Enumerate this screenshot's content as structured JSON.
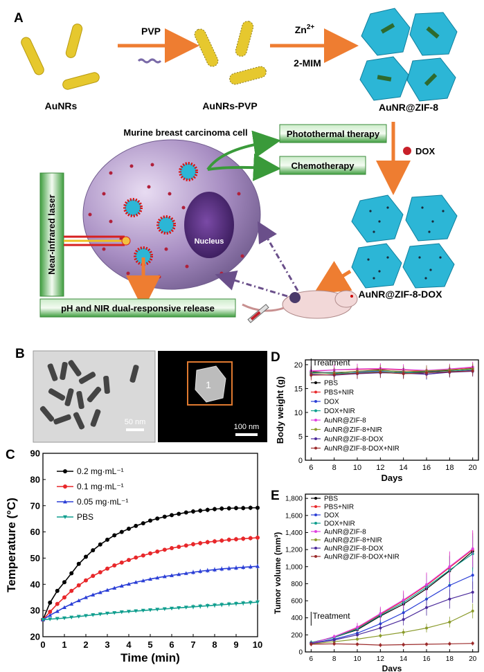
{
  "panel_labels": {
    "a": "A",
    "b": "B",
    "c": "C",
    "d": "D",
    "e": "E"
  },
  "panelA": {
    "reagent1": "PVP",
    "reagent2_main": "Zn",
    "reagent2_sup": "2+",
    "reagent3": "2-MIM",
    "label_aunrs": "AuNRs",
    "label_aunrs_pvp": "AuNRs-PVP",
    "label_zif": "AuNR@ZIF-8",
    "cell_title": "Murine breast carcinoma cell",
    "nucleus": "Nucleus",
    "photothermal": "Photothermal therapy",
    "chemotherapy": "Chemotherapy",
    "dox": "DOX",
    "laser": "Near-infrared laser",
    "release": "pH and NIR dual-responsive release",
    "zif_dox": "AuNR@ZIF-8-DOX"
  },
  "panelB": {
    "scale1": "50 nm",
    "scale2": "100 nm",
    "inset_number": "1"
  },
  "colors": {
    "arrow_orange": "#ee7d31",
    "green_box": "#2e8b2e",
    "rod_yellow": "#e6c82e",
    "crystal_blue": "#2cb6d6",
    "cell_purple": "#9a7fb4"
  },
  "chart_data": [
    {
      "type": "line",
      "panel": "C",
      "xlabel": "Time (min)",
      "ylabel": "Temperature (°C)",
      "xlim": [
        0,
        10
      ],
      "ylim": [
        20,
        90
      ],
      "xticks": [
        0,
        1,
        2,
        3,
        4,
        5,
        6,
        7,
        8,
        9,
        10
      ],
      "yticks": [
        20,
        30,
        40,
        50,
        60,
        70,
        80,
        90
      ],
      "x": [
        0,
        0.33,
        0.67,
        1,
        1.33,
        1.67,
        2,
        2.33,
        2.67,
        3,
        3.33,
        3.67,
        4,
        4.33,
        4.67,
        5,
        5.33,
        5.67,
        6,
        6.33,
        6.67,
        7,
        7.33,
        7.67,
        8,
        8.33,
        8.67,
        9,
        9.33,
        9.67,
        10
      ],
      "legend_position": "top-left",
      "series": [
        {
          "name": "0.2 mg·mL⁻¹",
          "color": "#000000",
          "marker": "circle",
          "values": [
            26.5,
            33,
            37.5,
            40.8,
            44.2,
            47.8,
            50.5,
            53,
            55.2,
            57,
            58.7,
            60,
            61.2,
            62.3,
            63.3,
            64.3,
            65.1,
            65.8,
            66.4,
            66.9,
            67.4,
            67.8,
            68.1,
            68.4,
            68.7,
            68.9,
            69,
            69.1,
            69.1,
            69.2,
            69.2
          ]
        },
        {
          "name": "0.1 mg·mL⁻¹",
          "color": "#e8272a",
          "marker": "circle",
          "values": [
            26.5,
            29.5,
            32.5,
            35,
            37.5,
            39.6,
            41.5,
            43.2,
            44.6,
            46,
            47.2,
            48.3,
            49.3,
            50.2,
            51,
            51.8,
            52.5,
            53.2,
            53.8,
            54.3,
            54.8,
            55.3,
            55.7,
            56.1,
            56.4,
            56.7,
            57,
            57.2,
            57.4,
            57.6,
            57.8
          ]
        },
        {
          "name": "0.05 mg·mL⁻¹",
          "color": "#2b3fd6",
          "marker": "triangle",
          "values": [
            26.5,
            28.2,
            29.7,
            31.2,
            32.5,
            33.8,
            35,
            36,
            36.9,
            37.8,
            38.6,
            39.4,
            40.1,
            40.8,
            41.4,
            42,
            42.5,
            43,
            43.4,
            43.8,
            44.2,
            44.6,
            45,
            45.3,
            45.6,
            45.9,
            46.1,
            46.3,
            46.5,
            46.7,
            46.9
          ]
        },
        {
          "name": "PBS",
          "color": "#0f9e8e",
          "marker": "triangle-down",
          "values": [
            26.5,
            26.7,
            26.9,
            27.1,
            27.4,
            27.7,
            28,
            28.3,
            28.6,
            28.9,
            29.1,
            29.4,
            29.6,
            29.8,
            30,
            30.2,
            30.4,
            30.6,
            30.8,
            31,
            31.2,
            31.4,
            31.6,
            31.8,
            32,
            32.2,
            32.4,
            32.6,
            32.8,
            33,
            33.2
          ]
        }
      ]
    },
    {
      "type": "line",
      "panel": "D",
      "xlabel": "Days",
      "ylabel": "Body weight (g)",
      "xlim": [
        5.5,
        20.5
      ],
      "ylim": [
        0,
        21
      ],
      "xticks": [
        6,
        8,
        10,
        12,
        14,
        16,
        18,
        20
      ],
      "yticks": [
        0,
        5,
        10,
        15,
        20
      ],
      "x": [
        6,
        8,
        10,
        12,
        14,
        16,
        18,
        20
      ],
      "annotation": "Treatment",
      "legend_position": "bottom-left",
      "series": [
        {
          "name": "PBS",
          "color": "#000000",
          "values": [
            18.5,
            18.2,
            18.6,
            18.9,
            18.4,
            18.6,
            18.8,
            19.2
          ]
        },
        {
          "name": "PBS+NIR",
          "color": "#e8272a",
          "values": [
            18.6,
            18.9,
            19.0,
            19.1,
            18.9,
            18.7,
            19.0,
            19.4
          ]
        },
        {
          "name": "DOX",
          "color": "#2b3fd6",
          "values": [
            18.3,
            18.4,
            18.5,
            18.7,
            18.6,
            18.0,
            18.5,
            18.8
          ]
        },
        {
          "name": "DOX+NIR",
          "color": "#0f9e8e",
          "values": [
            18.4,
            18.1,
            18.3,
            18.5,
            18.3,
            18.4,
            18.6,
            19.0
          ]
        },
        {
          "name": "AuNR@ZIF-8",
          "color": "#e040e0",
          "values": [
            18.7,
            18.9,
            19.1,
            19.2,
            19.0,
            18.8,
            19.1,
            19.5
          ]
        },
        {
          "name": "AuNR@ZIF-8+NIR",
          "color": "#8a9a2a",
          "values": [
            18.2,
            18.3,
            18.6,
            18.8,
            18.5,
            18.7,
            18.9,
            19.1
          ]
        },
        {
          "name": "AuNR@ZIF-8-DOX",
          "color": "#4b2a9b",
          "values": [
            18.0,
            17.8,
            18.1,
            18.3,
            18.2,
            18.0,
            18.4,
            18.6
          ]
        },
        {
          "name": "AuNR@ZIF-8-DOX+NIR",
          "color": "#9b2a2a",
          "values": [
            17.8,
            17.9,
            18.2,
            18.4,
            18.1,
            18.3,
            18.5,
            18.7
          ]
        }
      ]
    },
    {
      "type": "line",
      "panel": "E",
      "xlabel": "Days",
      "ylabel": "Tumor volume (mm³)",
      "xlim": [
        5.5,
        20.5
      ],
      "ylim": [
        0,
        1850
      ],
      "xticks": [
        6,
        8,
        10,
        12,
        14,
        16,
        18,
        20
      ],
      "yticks": [
        0,
        200,
        400,
        600,
        800,
        1000,
        1200,
        1400,
        1600,
        1800
      ],
      "ytick_labels": [
        "0",
        "200",
        "400",
        "600",
        "800",
        "1,000",
        "1,200",
        "1,400",
        "1,600",
        "1,800"
      ],
      "x": [
        6,
        8,
        10,
        12,
        14,
        16,
        18,
        20
      ],
      "annotation": "Treatment",
      "legend_position": "top-left",
      "series": [
        {
          "name": "PBS",
          "color": "#000000",
          "values": [
            110,
            170,
            260,
            420,
            560,
            740,
            950,
            1180
          ]
        },
        {
          "name": "PBS+NIR",
          "color": "#e8272a",
          "values": [
            105,
            175,
            280,
            440,
            600,
            780,
            990,
            1200
          ]
        },
        {
          "name": "DOX",
          "color": "#2b3fd6",
          "values": [
            100,
            150,
            220,
            330,
            460,
            620,
            780,
            900
          ]
        },
        {
          "name": "DOX+NIR",
          "color": "#0f9e8e",
          "values": [
            110,
            170,
            270,
            430,
            580,
            760,
            960,
            1150
          ]
        },
        {
          "name": "AuNR@ZIF-8",
          "color": "#e040e0",
          "values": [
            100,
            180,
            290,
            450,
            610,
            790,
            1000,
            1210
          ]
        },
        {
          "name": "AuNR@ZIF-8+NIR",
          "color": "#8a9a2a",
          "values": [
            95,
            120,
            150,
            190,
            230,
            280,
            350,
            480
          ]
        },
        {
          "name": "AuNR@ZIF-8-DOX",
          "color": "#4b2a9b",
          "values": [
            100,
            140,
            200,
            280,
            380,
            520,
            620,
            700
          ]
        },
        {
          "name": "AuNR@ZIF-8-DOX+NIR",
          "color": "#9b2a2a",
          "values": [
            90,
            95,
            90,
            80,
            85,
            90,
            95,
            100
          ]
        }
      ]
    }
  ]
}
